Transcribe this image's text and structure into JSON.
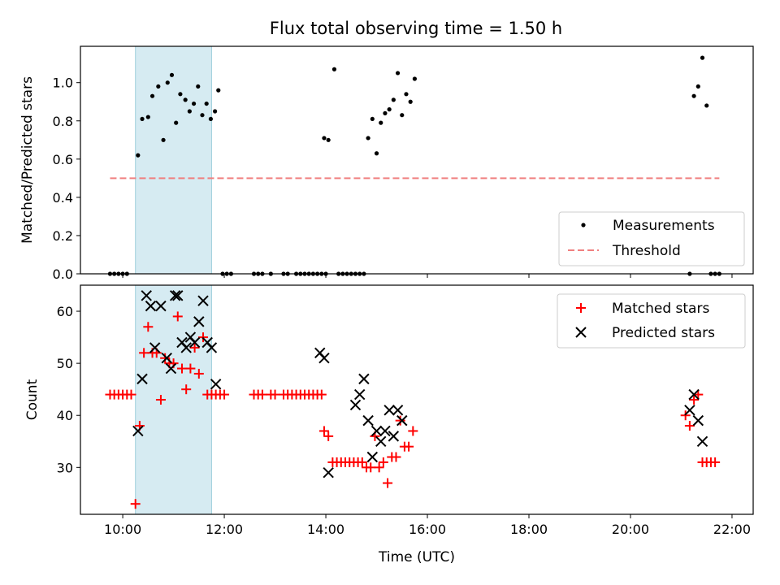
{
  "chart_data": [
    {
      "type": "scatter",
      "title": "Flux total observing time = 1.50 h",
      "ylabel": "Matched/Predicted stars",
      "xlim": [
        "09:10",
        "22:25"
      ],
      "ylim": [
        0,
        1.19
      ],
      "yticks": [
        "0.0",
        "0.2",
        "0.4",
        "0.6",
        "0.8",
        "1.0"
      ],
      "legend_position": "bottom-right",
      "legend": [
        "Measurements",
        "Threshold"
      ],
      "shaded_interval": [
        "10:15",
        "11:45"
      ],
      "threshold": {
        "y": 0.5,
        "x": [
          "09:45",
          "21:45"
        ],
        "color": "#f08080"
      },
      "series": [
        {
          "name": "Measurements",
          "color": "#000000",
          "points": [
            [
              "09:45",
              0
            ],
            [
              "09:50",
              0
            ],
            [
              "09:55",
              0
            ],
            [
              "10:00",
              0
            ],
            [
              "10:05",
              0
            ],
            [
              "10:18",
              0.62
            ],
            [
              "10:23",
              0.81
            ],
            [
              "10:30",
              0.82
            ],
            [
              "10:35",
              0.93
            ],
            [
              "10:42",
              0.98
            ],
            [
              "10:48",
              0.7
            ],
            [
              "10:53",
              1.0
            ],
            [
              "10:58",
              1.04
            ],
            [
              "11:03",
              0.79
            ],
            [
              "11:08",
              0.94
            ],
            [
              "11:14",
              0.91
            ],
            [
              "11:19",
              0.85
            ],
            [
              "11:24",
              0.89
            ],
            [
              "11:29",
              0.98
            ],
            [
              "11:34",
              0.83
            ],
            [
              "11:39",
              0.89
            ],
            [
              "11:44",
              0.81
            ],
            [
              "11:49",
              0.85
            ],
            [
              "11:53",
              0.96
            ],
            [
              "11:58",
              0
            ],
            [
              "12:03",
              0
            ],
            [
              "12:08",
              0
            ],
            [
              "12:35",
              0
            ],
            [
              "12:40",
              0
            ],
            [
              "12:45",
              0
            ],
            [
              "12:55",
              0
            ],
            [
              "13:10",
              0
            ],
            [
              "13:15",
              0
            ],
            [
              "13:25",
              0
            ],
            [
              "13:30",
              0
            ],
            [
              "13:35",
              0
            ],
            [
              "13:40",
              0
            ],
            [
              "13:45",
              0
            ],
            [
              "13:50",
              0
            ],
            [
              "13:55",
              0
            ],
            [
              "14:00",
              0
            ],
            [
              "13:58",
              0.71
            ],
            [
              "14:03",
              0.7
            ],
            [
              "14:10",
              1.07
            ],
            [
              "14:15",
              0
            ],
            [
              "14:20",
              0
            ],
            [
              "14:25",
              0
            ],
            [
              "14:30",
              0
            ],
            [
              "14:35",
              0
            ],
            [
              "14:40",
              0
            ],
            [
              "14:45",
              0
            ],
            [
              "14:50",
              0.71
            ],
            [
              "14:55",
              0.81
            ],
            [
              "15:00",
              0.63
            ],
            [
              "15:05",
              0.79
            ],
            [
              "15:10",
              0.84
            ],
            [
              "15:15",
              0.86
            ],
            [
              "15:20",
              0.91
            ],
            [
              "15:25",
              1.05
            ],
            [
              "15:30",
              0.83
            ],
            [
              "15:35",
              0.94
            ],
            [
              "15:40",
              0.9
            ],
            [
              "15:45",
              1.02
            ],
            [
              "21:10",
              0
            ],
            [
              "21:15",
              0.93
            ],
            [
              "21:20",
              0.98
            ],
            [
              "21:25",
              1.13
            ],
            [
              "21:30",
              0.88
            ],
            [
              "21:35",
              0
            ],
            [
              "21:40",
              0
            ],
            [
              "21:45",
              0
            ]
          ]
        }
      ]
    },
    {
      "type": "scatter",
      "xlabel": "Time (UTC)",
      "ylabel": "Count",
      "xlim": [
        "09:10",
        "22:25"
      ],
      "ylim": [
        21,
        65
      ],
      "yticks": [
        "30",
        "40",
        "50",
        "60"
      ],
      "xticks": [
        "10:00",
        "12:00",
        "14:00",
        "16:00",
        "18:00",
        "20:00",
        "22:00"
      ],
      "legend_position": "top-right",
      "legend": [
        "Matched stars",
        "Predicted stars"
      ],
      "shaded_interval": [
        "10:15",
        "11:45"
      ],
      "series": [
        {
          "name": "Matched stars",
          "marker": "plus",
          "color": "#ff0000",
          "points": [
            [
              "09:45",
              44
            ],
            [
              "09:50",
              44
            ],
            [
              "09:55",
              44
            ],
            [
              "10:00",
              44
            ],
            [
              "10:05",
              44
            ],
            [
              "10:10",
              44
            ],
            [
              "10:15",
              23
            ],
            [
              "10:20",
              38
            ],
            [
              "10:25",
              52
            ],
            [
              "10:30",
              57
            ],
            [
              "10:35",
              52
            ],
            [
              "10:40",
              52
            ],
            [
              "10:45",
              43
            ],
            [
              "10:50",
              51
            ],
            [
              "10:55",
              50
            ],
            [
              "11:00",
              50
            ],
            [
              "11:05",
              59
            ],
            [
              "11:10",
              49
            ],
            [
              "11:15",
              45
            ],
            [
              "11:20",
              49
            ],
            [
              "11:25",
              53
            ],
            [
              "11:30",
              48
            ],
            [
              "11:35",
              55
            ],
            [
              "11:40",
              44
            ],
            [
              "11:45",
              44
            ],
            [
              "11:50",
              44
            ],
            [
              "11:55",
              44
            ],
            [
              "12:00",
              44
            ],
            [
              "12:35",
              44
            ],
            [
              "12:40",
              44
            ],
            [
              "12:45",
              44
            ],
            [
              "12:55",
              44
            ],
            [
              "13:00",
              44
            ],
            [
              "13:10",
              44
            ],
            [
              "13:15",
              44
            ],
            [
              "13:20",
              44
            ],
            [
              "13:25",
              44
            ],
            [
              "13:30",
              44
            ],
            [
              "13:35",
              44
            ],
            [
              "13:40",
              44
            ],
            [
              "13:45",
              44
            ],
            [
              "13:50",
              44
            ],
            [
              "13:55",
              44
            ],
            [
              "13:58",
              37
            ],
            [
              "14:03",
              36
            ],
            [
              "14:08",
              31
            ],
            [
              "14:13",
              31
            ],
            [
              "14:18",
              31
            ],
            [
              "14:23",
              31
            ],
            [
              "14:28",
              31
            ],
            [
              "14:33",
              31
            ],
            [
              "14:38",
              31
            ],
            [
              "14:43",
              31
            ],
            [
              "14:48",
              30
            ],
            [
              "14:53",
              30
            ],
            [
              "14:58",
              36
            ],
            [
              "15:03",
              30
            ],
            [
              "15:08",
              31
            ],
            [
              "15:13",
              27
            ],
            [
              "15:18",
              32
            ],
            [
              "15:23",
              32
            ],
            [
              "15:28",
              39
            ],
            [
              "15:33",
              34
            ],
            [
              "15:38",
              34
            ],
            [
              "15:43",
              37
            ],
            [
              "21:05",
              40
            ],
            [
              "21:10",
              38
            ],
            [
              "21:15",
              43
            ],
            [
              "21:20",
              44
            ],
            [
              "21:25",
              31
            ],
            [
              "21:30",
              31
            ],
            [
              "21:35",
              31
            ],
            [
              "21:40",
              31
            ]
          ]
        },
        {
          "name": "Predicted stars",
          "marker": "x",
          "color": "#000000",
          "points": [
            [
              "10:18",
              37
            ],
            [
              "10:23",
              47
            ],
            [
              "10:28",
              63
            ],
            [
              "10:33",
              61
            ],
            [
              "10:38",
              53
            ],
            [
              "10:45",
              61
            ],
            [
              "10:52",
              51
            ],
            [
              "10:57",
              49
            ],
            [
              "11:02",
              63
            ],
            [
              "11:05",
              63
            ],
            [
              "11:10",
              54
            ],
            [
              "11:15",
              53
            ],
            [
              "11:20",
              55
            ],
            [
              "11:25",
              54
            ],
            [
              "11:30",
              58
            ],
            [
              "11:35",
              62
            ],
            [
              "11:40",
              54
            ],
            [
              "11:45",
              53
            ],
            [
              "11:50",
              46
            ],
            [
              "13:53",
              52
            ],
            [
              "13:58",
              51
            ],
            [
              "14:03",
              29
            ],
            [
              "14:35",
              42
            ],
            [
              "14:40",
              44
            ],
            [
              "14:45",
              47
            ],
            [
              "14:50",
              39
            ],
            [
              "14:55",
              32
            ],
            [
              "15:00",
              37
            ],
            [
              "15:05",
              35
            ],
            [
              "15:10",
              37
            ],
            [
              "15:15",
              41
            ],
            [
              "15:20",
              36
            ],
            [
              "15:25",
              41
            ],
            [
              "15:30",
              39
            ],
            [
              "21:10",
              41
            ],
            [
              "21:15",
              44
            ],
            [
              "21:20",
              39
            ],
            [
              "21:25",
              35
            ]
          ]
        }
      ]
    }
  ]
}
